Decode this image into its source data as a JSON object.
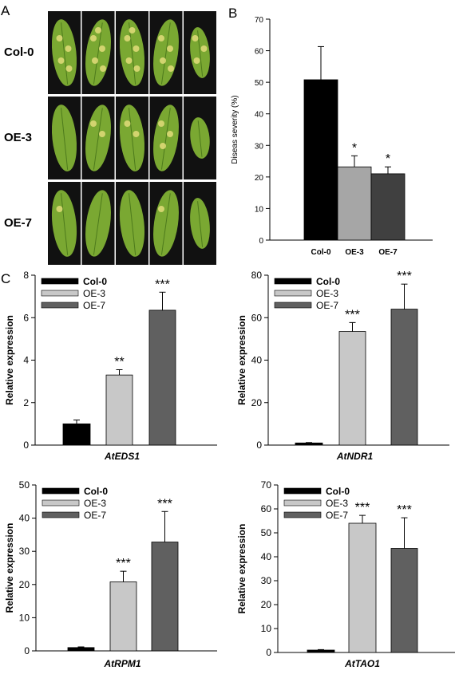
{
  "panels": {
    "a": "A",
    "b": "B",
    "c": "C"
  },
  "photo": {
    "rows": [
      {
        "label": "Col-0",
        "leaves": [
          {
            "spots": 4
          },
          {
            "spots": 5
          },
          {
            "spots": 5
          },
          {
            "spots": 4
          },
          {
            "spots": 3
          }
        ]
      },
      {
        "label": "OE-3",
        "leaves": [
          {
            "spots": 0
          },
          {
            "spots": 2
          },
          {
            "spots": 2
          },
          {
            "spots": 3
          },
          {
            "spots": 0
          }
        ]
      },
      {
        "label": "OE-7",
        "leaves": [
          {
            "spots": 1
          },
          {
            "spots": 0
          },
          {
            "spots": 0
          },
          {
            "spots": 1
          },
          {
            "spots": 0
          }
        ]
      }
    ],
    "colors": {
      "background": "#111111",
      "leaf": "#7aa832",
      "leaf_dark": "#4d7a1c",
      "lesion": "#e2dc7a"
    }
  },
  "chart_data": [
    {
      "id": "severity",
      "type": "bar",
      "ylabel": "Diseas severity (%)",
      "xlabel": "",
      "ylim": [
        0,
        70
      ],
      "yticks": [
        0,
        10,
        20,
        30,
        40,
        50,
        60,
        70
      ],
      "categories": [
        "Col-0",
        "OE-3",
        "OE-7"
      ],
      "values": [
        50.8,
        23.2,
        21.0
      ],
      "errors": [
        10.5,
        3.5,
        2.2
      ],
      "significance": [
        "",
        "*",
        "*"
      ],
      "colors": [
        "#000000",
        "#a6a6a6",
        "#404040"
      ],
      "legend": false
    },
    {
      "id": "eds1",
      "type": "bar",
      "xlabel": "AtEDS1",
      "ylabel": "Relative expression",
      "ylim": [
        0,
        8
      ],
      "yticks": [
        0,
        2,
        4,
        6,
        8
      ],
      "categories": [
        "Col-0",
        "OE-3",
        "OE-7"
      ],
      "values": [
        1.0,
        3.3,
        6.35
      ],
      "errors": [
        0.18,
        0.25,
        0.85
      ],
      "significance": [
        "",
        "**",
        "***"
      ],
      "colors": [
        "#000000",
        "#c8c8c8",
        "#606060"
      ],
      "legend": true,
      "legend_position": "top-left"
    },
    {
      "id": "ndr1",
      "type": "bar",
      "xlabel": "AtNDR1",
      "ylabel": "Relative expression",
      "ylim": [
        0,
        80
      ],
      "yticks": [
        0,
        20,
        40,
        60,
        80
      ],
      "categories": [
        "Col-0",
        "OE-3",
        "OE-7"
      ],
      "values": [
        1.0,
        53.5,
        64.0
      ],
      "errors": [
        0.2,
        4.2,
        11.8
      ],
      "significance": [
        "",
        "***",
        "***"
      ],
      "colors": [
        "#000000",
        "#c8c8c8",
        "#606060"
      ],
      "legend": true,
      "legend_position": "top-left"
    },
    {
      "id": "rpm1",
      "type": "bar",
      "xlabel": "AtRPM1",
      "ylabel": "Relative expression",
      "ylim": [
        0,
        50
      ],
      "yticks": [
        0,
        10,
        20,
        30,
        40,
        50
      ],
      "categories": [
        "Col-0",
        "OE-3",
        "OE-7"
      ],
      "values": [
        1.0,
        20.8,
        32.8
      ],
      "errors": [
        0.2,
        3.2,
        9.2
      ],
      "significance": [
        "",
        "***",
        "***"
      ],
      "colors": [
        "#000000",
        "#c8c8c8",
        "#606060"
      ],
      "legend": true,
      "legend_position": "top-left"
    },
    {
      "id": "tao1",
      "type": "bar",
      "xlabel": "AtTAO1",
      "ylabel": "Relative expression",
      "ylim": [
        0,
        70
      ],
      "yticks": [
        0,
        10,
        20,
        30,
        40,
        50,
        60,
        70
      ],
      "categories": [
        "Col-0",
        "OE-3",
        "OE-7"
      ],
      "values": [
        1.0,
        54.0,
        43.5
      ],
      "errors": [
        0.2,
        3.3,
        12.8
      ],
      "significance": [
        "",
        "***",
        "***"
      ],
      "colors": [
        "#000000",
        "#c8c8c8",
        "#606060"
      ],
      "legend": true,
      "legend_position": "top-left"
    }
  ]
}
